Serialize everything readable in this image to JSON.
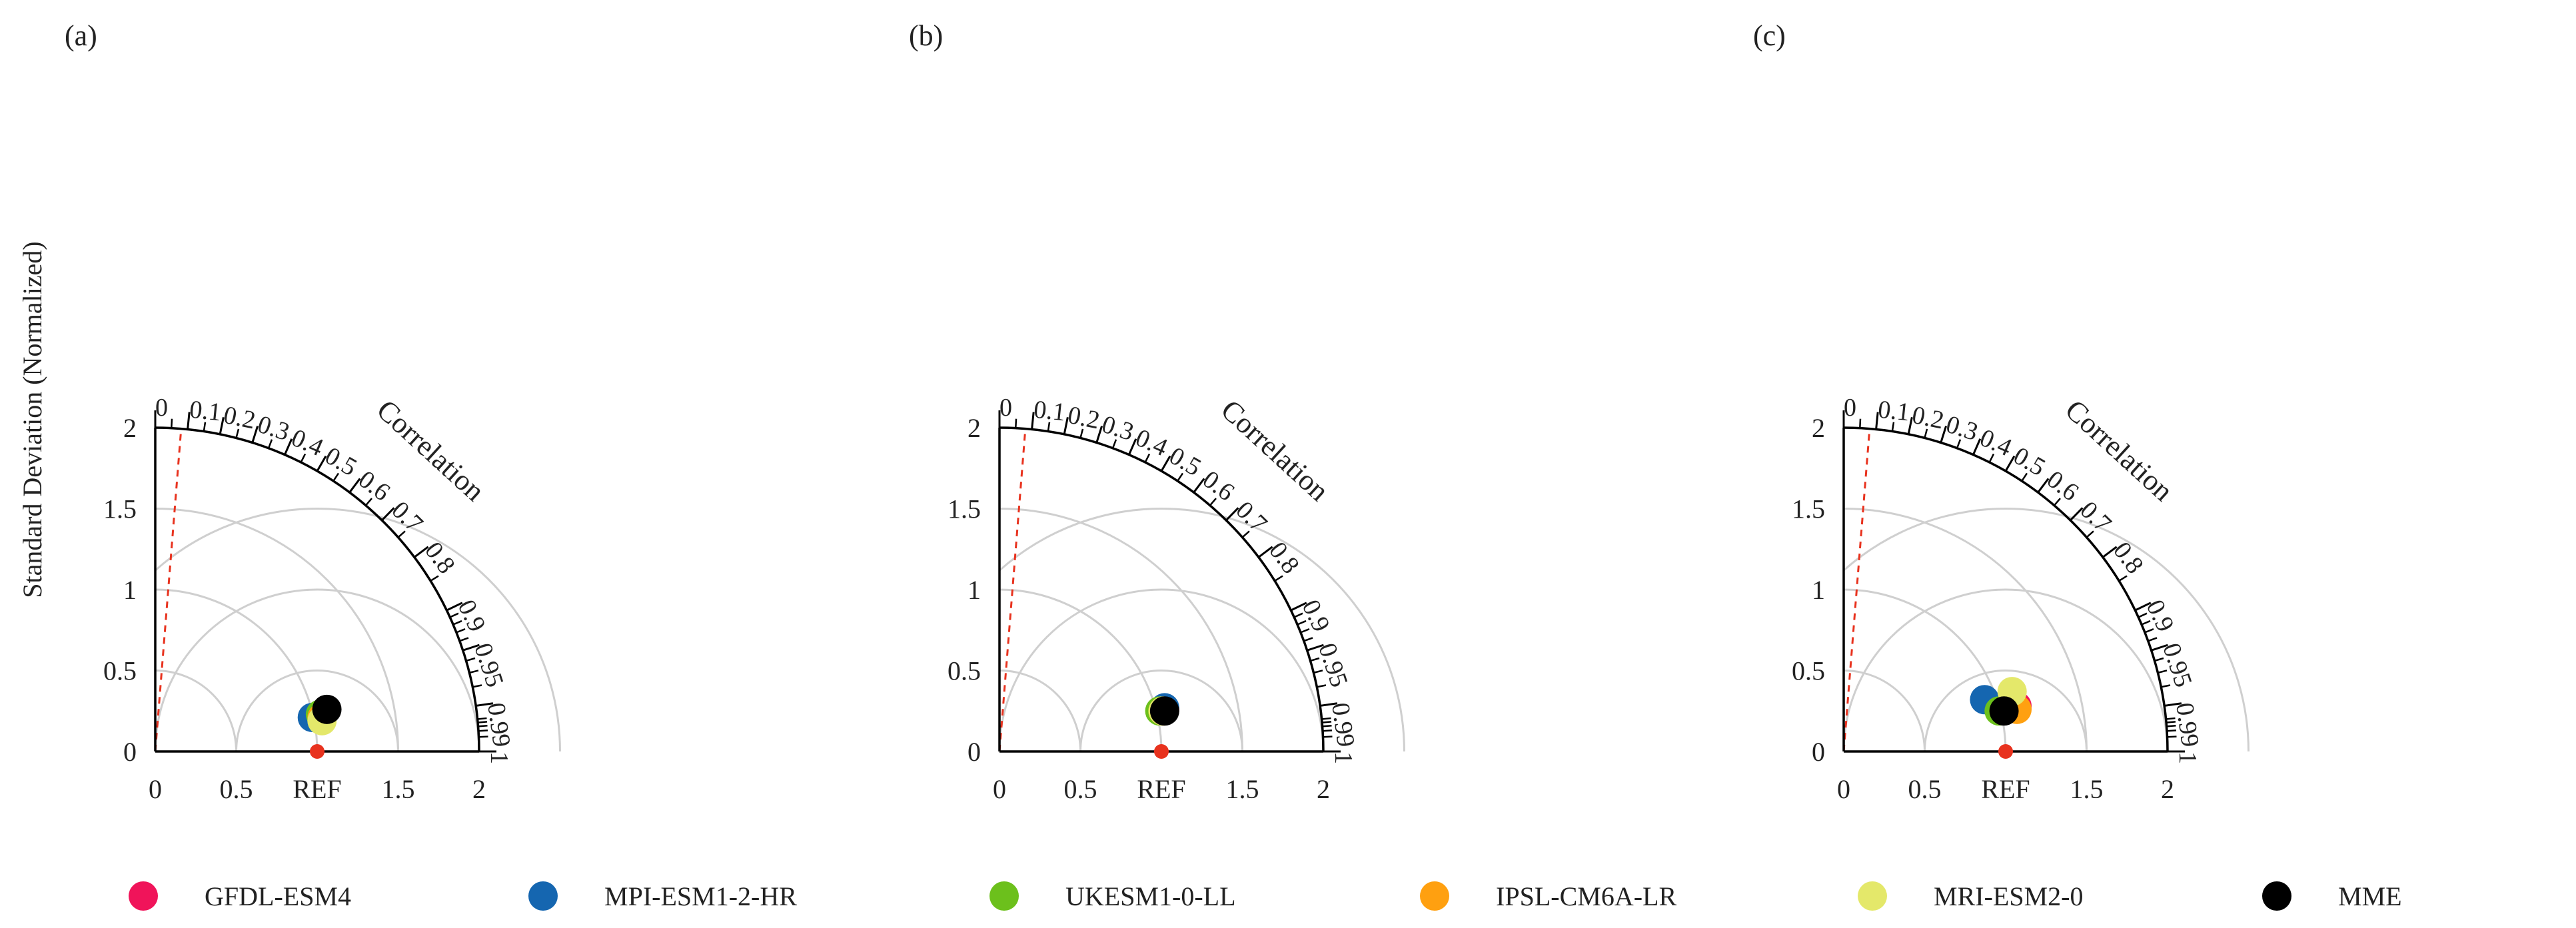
{
  "ylabel": "Standard Deviation (Normalized)",
  "legend": [
    {
      "name": "GFDL-ESM4",
      "color": "#f0145a"
    },
    {
      "name": "MPI-ESM1-2-HR",
      "color": "#1566b0"
    },
    {
      "name": "UKESM1-0-LL",
      "color": "#6cc01c"
    },
    {
      "name": "IPSL-CM6A-LR",
      "color": "#ffa010"
    },
    {
      "name": "MRI-ESM2-0",
      "color": "#e4e86a"
    },
    {
      "name": "MME",
      "color": "#000000"
    }
  ],
  "ref_color": "#e8321e",
  "chart_data": [
    {
      "type": "taylor",
      "panel_label": "(a)",
      "title": "Correlation",
      "std_ticks": [
        "0",
        "0.5",
        "1",
        "1.5",
        "2"
      ],
      "ref_label": "REF",
      "std_max": 2,
      "ref_std": 1,
      "correlation_ticks": [
        "0",
        "0.1",
        "0.2",
        "0.3",
        "0.4",
        "0.5",
        "0.6",
        "0.7",
        "0.8",
        "0.9",
        "0.95",
        "0.99",
        "1"
      ],
      "dashed_correlation": 0.08,
      "points": [
        {
          "name": "GFDL-ESM4",
          "x": 1.0,
          "y": 0.21
        },
        {
          "name": "MPI-ESM1-2-HR",
          "x": 0.97,
          "y": 0.21
        },
        {
          "name": "UKESM1-0-LL",
          "x": 1.02,
          "y": 0.23
        },
        {
          "name": "IPSL-CM6A-LR",
          "x": 1.03,
          "y": 0.21
        },
        {
          "name": "MRI-ESM2-0",
          "x": 1.03,
          "y": 0.19
        },
        {
          "name": "MME",
          "x": 1.06,
          "y": 0.26
        }
      ]
    },
    {
      "type": "taylor",
      "panel_label": "(b)",
      "title": "Correlation",
      "std_ticks": [
        "0",
        "0.5",
        "1",
        "1.5",
        "2"
      ],
      "ref_label": "REF",
      "std_max": 2,
      "ref_std": 1,
      "correlation_ticks": [
        "0",
        "0.1",
        "0.2",
        "0.3",
        "0.4",
        "0.5",
        "0.6",
        "0.7",
        "0.8",
        "0.9",
        "0.95",
        "0.99",
        "1"
      ],
      "dashed_correlation": 0.08,
      "points": [
        {
          "name": "GFDL-ESM4",
          "x": 1.02,
          "y": 0.26
        },
        {
          "name": "MPI-ESM1-2-HR",
          "x": 1.02,
          "y": 0.27
        },
        {
          "name": "UKESM1-0-LL",
          "x": 0.99,
          "y": 0.25
        },
        {
          "name": "IPSL-CM6A-LR",
          "x": 1.01,
          "y": 0.25
        },
        {
          "name": "MRI-ESM2-0",
          "x": 1.01,
          "y": 0.25
        },
        {
          "name": "MME",
          "x": 1.02,
          "y": 0.25
        }
      ]
    },
    {
      "type": "taylor",
      "panel_label": "(c)",
      "title": "Correlation",
      "std_ticks": [
        "0",
        "0.5",
        "1",
        "1.5",
        "2"
      ],
      "ref_label": "REF",
      "std_max": 2,
      "ref_std": 1,
      "correlation_ticks": [
        "0",
        "0.1",
        "0.2",
        "0.3",
        "0.4",
        "0.5",
        "0.6",
        "0.7",
        "0.8",
        "0.9",
        "0.95",
        "0.99",
        "1"
      ],
      "dashed_correlation": 0.08,
      "points": [
        {
          "name": "GFDL-ESM4",
          "x": 1.07,
          "y": 0.28
        },
        {
          "name": "MPI-ESM1-2-HR",
          "x": 0.87,
          "y": 0.32
        },
        {
          "name": "UKESM1-0-LL",
          "x": 0.96,
          "y": 0.25
        },
        {
          "name": "IPSL-CM6A-LR",
          "x": 1.07,
          "y": 0.26
        },
        {
          "name": "MRI-ESM2-0",
          "x": 1.04,
          "y": 0.37
        },
        {
          "name": "MME",
          "x": 0.99,
          "y": 0.25
        }
      ]
    }
  ]
}
